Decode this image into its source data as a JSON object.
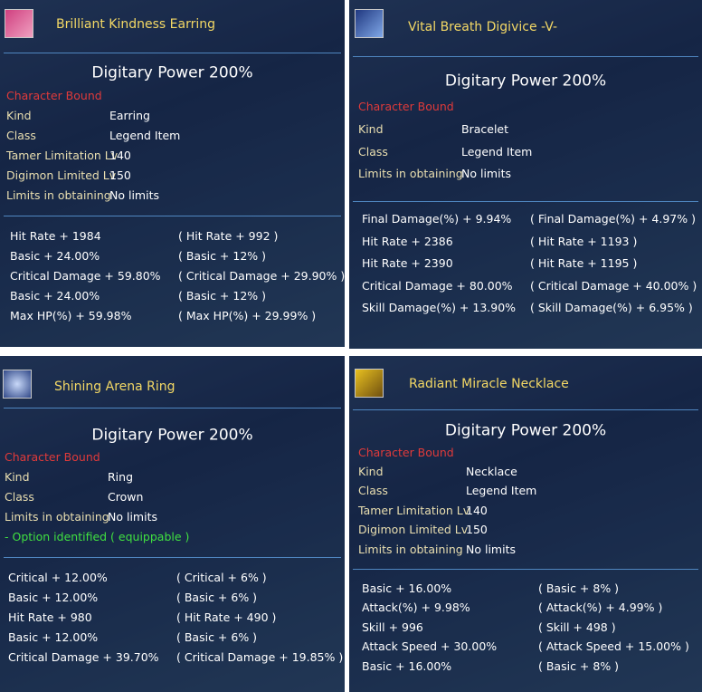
{
  "panels": [
    {
      "title": "Brilliant Kindness Earring",
      "power": "Digitary Power 200%",
      "bound": "Character Bound",
      "properties": [
        {
          "label": "Kind",
          "value": "Earring"
        },
        {
          "label": "Class",
          "value": "Legend Item"
        },
        {
          "label": "Tamer Limitation Lv",
          "value": "140"
        },
        {
          "label": "Digimon Limited Lv",
          "value": "150"
        },
        {
          "label": "Limits in obtaining",
          "value": "No limits"
        }
      ],
      "stats": [
        {
          "left": "Hit Rate + 1984",
          "right": "( Hit Rate + 992 )"
        },
        {
          "left": "Basic + 24.00%",
          "right": "( Basic + 12% )"
        },
        {
          "left": "Critical Damage + 59.80%",
          "right": "( Critical Damage + 29.90% )"
        },
        {
          "left": "Basic + 24.00%",
          "right": "( Basic + 12% )"
        },
        {
          "left": "Max HP(%) + 59.98%",
          "right": "( Max HP(%) + 29.99% )"
        }
      ]
    },
    {
      "title": "Vital Breath Digivice -V-",
      "power": "Digitary Power 200%",
      "bound": "Character Bound",
      "properties": [
        {
          "label": "Kind",
          "value": "Bracelet"
        },
        {
          "label": "Class",
          "value": "Legend Item"
        },
        {
          "label": "Limits in obtaining",
          "value": "No limits"
        }
      ],
      "stats": [
        {
          "left": "Final Damage(%) + 9.94%",
          "right": "( Final Damage(%) + 4.97% )"
        },
        {
          "left": "Hit Rate + 2386",
          "right": "( Hit Rate + 1193 )"
        },
        {
          "left": "Hit Rate + 2390",
          "right": "( Hit Rate + 1195 )"
        },
        {
          "left": "Critical Damage + 80.00%",
          "right": "( Critical Damage + 40.00% )"
        },
        {
          "left": "Skill Damage(%) + 13.90%",
          "right": "( Skill Damage(%) + 6.95% )"
        }
      ]
    },
    {
      "title": "Shining Arena Ring",
      "power": "Digitary Power 200%",
      "bound": "Character Bound",
      "properties": [
        {
          "label": "Kind",
          "value": "Ring"
        },
        {
          "label": "Class",
          "value": "Crown"
        },
        {
          "label": "Limits in obtaining",
          "value": "No limits"
        }
      ],
      "note": "- Option identified ( equippable )",
      "stats": [
        {
          "left": "Critical + 12.00%",
          "right": "( Critical + 6% )"
        },
        {
          "left": "Basic + 12.00%",
          "right": "( Basic + 6% )"
        },
        {
          "left": "Hit Rate + 980",
          "right": "( Hit Rate + 490 )"
        },
        {
          "left": "Basic + 12.00%",
          "right": "( Basic + 6% )"
        },
        {
          "left": "Critical Damage + 39.70%",
          "right": "( Critical Damage + 19.85% )"
        }
      ]
    },
    {
      "title": "Radiant Miracle Necklace",
      "power": "Digitary Power 200%",
      "bound": "Character Bound",
      "properties": [
        {
          "label": "Kind",
          "value": "Necklace"
        },
        {
          "label": "Class",
          "value": "Legend Item"
        },
        {
          "label": "Tamer Limitation Lv",
          "value": "140"
        },
        {
          "label": "Digimon Limited Lv",
          "value": "150"
        },
        {
          "label": "Limits in obtaining",
          "value": "No limits"
        }
      ],
      "stats": [
        {
          "left": "Basic + 16.00%",
          "right": "( Basic + 8% )"
        },
        {
          "left": "Attack(%) + 9.98%",
          "right": "( Attack(%) + 4.99% )"
        },
        {
          "left": "Skill + 996",
          "right": "( Skill + 498 )"
        },
        {
          "left": "Attack Speed + 30.00%",
          "right": "( Attack Speed + 15.00% )"
        },
        {
          "left": "Basic + 16.00%",
          "right": "( Basic + 8% )"
        }
      ]
    }
  ]
}
